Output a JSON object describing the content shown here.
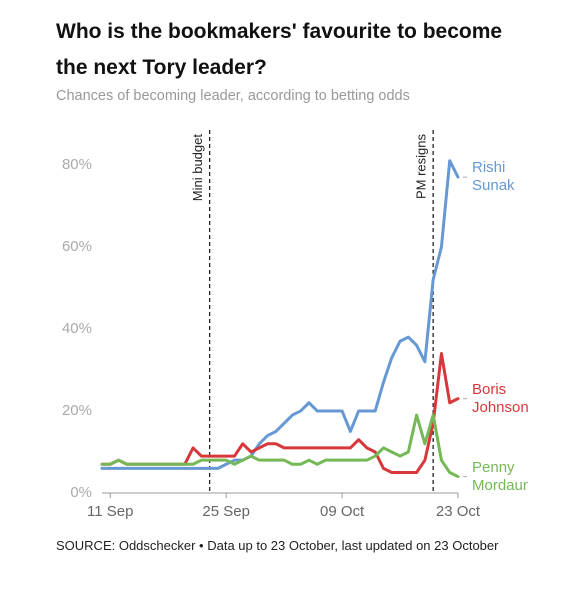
{
  "chart_data": {
    "type": "line",
    "title": "Who is the bookmakers' favourite to become the next Tory leader?",
    "subtitle": "Chances of becoming leader, according to betting odds",
    "source": "SOURCE: Oddschecker • Data up to 23 October, last updated on 23 October",
    "x": [
      "10 Sep",
      "11 Sep",
      "12 Sep",
      "13 Sep",
      "14 Sep",
      "15 Sep",
      "16 Sep",
      "17 Sep",
      "18 Sep",
      "19 Sep",
      "20 Sep",
      "21 Sep",
      "22 Sep",
      "23 Sep",
      "24 Sep",
      "25 Sep",
      "26 Sep",
      "27 Sep",
      "28 Sep",
      "29 Sep",
      "30 Sep",
      "01 Oct",
      "02 Oct",
      "03 Oct",
      "04 Oct",
      "05 Oct",
      "06 Oct",
      "07 Oct",
      "08 Oct",
      "09 Oct",
      "10 Oct",
      "11 Oct",
      "12 Oct",
      "13 Oct",
      "14 Oct",
      "15 Oct",
      "16 Oct",
      "17 Oct",
      "18 Oct",
      "19 Oct",
      "20 Oct",
      "21 Oct",
      "22 Oct",
      "23 Oct"
    ],
    "xticks": [
      "11 Sep",
      "25 Sep",
      "09 Oct",
      "23 Oct"
    ],
    "ylim": [
      0,
      88
    ],
    "yticks": [
      {
        "value": 0,
        "label": "0%"
      },
      {
        "value": 20,
        "label": "20%"
      },
      {
        "value": 40,
        "label": "40%"
      },
      {
        "value": 60,
        "label": "60%"
      },
      {
        "value": 80,
        "label": "80%"
      }
    ],
    "grid": false,
    "series": [
      {
        "name": "Rishi Sunak",
        "color": "#6699d4",
        "values": [
          6,
          6,
          6,
          6,
          6,
          6,
          6,
          6,
          6,
          6,
          6,
          6,
          6,
          6,
          6,
          7,
          8,
          8,
          9,
          12,
          14,
          15,
          17,
          19,
          20,
          22,
          20,
          20,
          20,
          20,
          15,
          20,
          20,
          20,
          27,
          33,
          37,
          38,
          36,
          32,
          52,
          60,
          81,
          77
        ]
      },
      {
        "name": "Boris Johnson",
        "color": "#d8383b",
        "values": [
          7,
          7,
          8,
          7,
          7,
          7,
          7,
          7,
          7,
          7,
          7,
          11,
          9,
          9,
          9,
          9,
          9,
          12,
          10,
          11,
          12,
          12,
          11,
          11,
          11,
          11,
          11,
          11,
          11,
          11,
          11,
          13,
          11,
          10,
          6,
          5,
          5,
          5,
          5,
          8,
          17,
          34,
          22,
          23
        ]
      },
      {
        "name": "Penny Mordaunt",
        "color": "#74b956",
        "values": [
          7,
          7,
          8,
          7,
          7,
          7,
          7,
          7,
          7,
          7,
          7,
          7,
          8,
          8,
          8,
          8,
          7,
          8,
          9,
          8,
          8,
          8,
          8,
          7,
          7,
          8,
          7,
          8,
          8,
          8,
          8,
          8,
          8,
          9,
          11,
          10,
          9,
          10,
          19,
          12,
          19,
          8,
          5,
          4
        ]
      }
    ],
    "annotations": [
      {
        "text": "Mini budget",
        "x": "23 Sep"
      },
      {
        "text": "PM resigns",
        "x": "20 Oct"
      }
    ]
  }
}
